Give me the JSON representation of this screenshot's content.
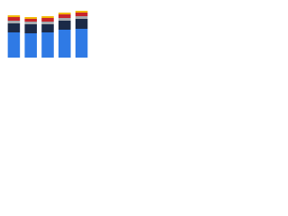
{
  "chart_data": {
    "type": "stacked-bar",
    "categories": [
      null,
      null,
      null,
      null,
      null
    ],
    "series": [
      {
        "color": "#2f7ae5",
        "values": [
          28,
          27,
          28,
          31,
          32
        ]
      },
      {
        "color": "#1b2a47",
        "values": [
          10,
          10,
          9,
          10,
          11
        ]
      },
      {
        "color": "#a5a9ad",
        "values": [
          3,
          3,
          3,
          3,
          3
        ]
      },
      {
        "color": "#c8252b",
        "values": [
          4,
          3,
          4,
          4,
          4
        ]
      },
      {
        "color": "#f2b705",
        "values": [
          2,
          2,
          2,
          2,
          2
        ]
      }
    ],
    "ylim": [
      0,
      55
    ]
  }
}
